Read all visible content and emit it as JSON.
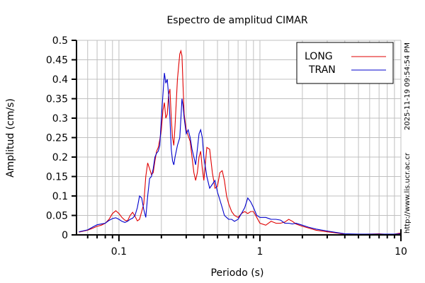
{
  "chart_data": {
    "type": "line",
    "title": "Espectro de amplitud CIMAR",
    "xlabel": "Periodo (s)",
    "ylabel": "Amplitud (cm/s)",
    "xscale": "log",
    "xlim": [
      0.05,
      10
    ],
    "ylim": [
      0,
      0.5
    ],
    "grid": true,
    "legend_position": "upper right",
    "x_tick_labels": [
      "0.1",
      "1",
      "10"
    ],
    "y_tick_labels": [
      "0",
      "0.05",
      "0.1",
      "0.15",
      "0.2",
      "0.25",
      "0.3",
      "0.35",
      "0.4",
      "0.45",
      "0.5"
    ],
    "series": [
      {
        "name": "LONG",
        "color": "#e00000",
        "x": [
          0.052,
          0.06,
          0.065,
          0.07,
          0.075,
          0.08,
          0.085,
          0.09,
          0.095,
          0.1,
          0.105,
          0.11,
          0.115,
          0.12,
          0.125,
          0.13,
          0.135,
          0.14,
          0.145,
          0.15,
          0.155,
          0.16,
          0.165,
          0.17,
          0.175,
          0.18,
          0.185,
          0.19,
          0.195,
          0.2,
          0.205,
          0.21,
          0.215,
          0.22,
          0.225,
          0.23,
          0.235,
          0.24,
          0.245,
          0.25,
          0.26,
          0.27,
          0.275,
          0.28,
          0.285,
          0.29,
          0.3,
          0.31,
          0.32,
          0.33,
          0.34,
          0.35,
          0.36,
          0.37,
          0.38,
          0.39,
          0.4,
          0.42,
          0.44,
          0.46,
          0.48,
          0.5,
          0.52,
          0.54,
          0.56,
          0.58,
          0.6,
          0.63,
          0.66,
          0.7,
          0.74,
          0.78,
          0.82,
          0.86,
          0.9,
          0.95,
          1.0,
          1.1,
          1.2,
          1.3,
          1.4,
          1.5,
          1.6,
          1.7,
          1.8,
          2.0,
          2.2,
          2.5,
          3.0,
          3.5,
          4.0,
          5.0,
          6.0,
          7.0,
          8.0,
          9.0,
          10.0
        ],
        "values": [
          0.007,
          0.012,
          0.017,
          0.022,
          0.025,
          0.03,
          0.04,
          0.055,
          0.062,
          0.055,
          0.045,
          0.038,
          0.036,
          0.05,
          0.058,
          0.048,
          0.036,
          0.04,
          0.06,
          0.08,
          0.15,
          0.185,
          0.17,
          0.155,
          0.16,
          0.19,
          0.215,
          0.225,
          0.245,
          0.27,
          0.32,
          0.34,
          0.3,
          0.31,
          0.36,
          0.375,
          0.3,
          0.25,
          0.23,
          0.28,
          0.4,
          0.465,
          0.473,
          0.46,
          0.38,
          0.31,
          0.27,
          0.255,
          0.24,
          0.2,
          0.16,
          0.14,
          0.16,
          0.2,
          0.215,
          0.17,
          0.14,
          0.225,
          0.22,
          0.16,
          0.12,
          0.125,
          0.16,
          0.165,
          0.14,
          0.1,
          0.08,
          0.06,
          0.05,
          0.045,
          0.055,
          0.06,
          0.055,
          0.06,
          0.06,
          0.045,
          0.03,
          0.025,
          0.035,
          0.03,
          0.03,
          0.033,
          0.04,
          0.035,
          0.028,
          0.022,
          0.018,
          0.012,
          0.008,
          0.005,
          0.002,
          0.001,
          0.002,
          0.003,
          0.001,
          0.002,
          0.005
        ]
      },
      {
        "name": "TRAN",
        "color": "#0000cc",
        "x": [
          0.052,
          0.06,
          0.065,
          0.07,
          0.075,
          0.08,
          0.085,
          0.09,
          0.095,
          0.1,
          0.105,
          0.11,
          0.115,
          0.12,
          0.125,
          0.13,
          0.135,
          0.14,
          0.145,
          0.15,
          0.155,
          0.16,
          0.165,
          0.17,
          0.175,
          0.18,
          0.185,
          0.19,
          0.195,
          0.2,
          0.205,
          0.21,
          0.215,
          0.22,
          0.225,
          0.23,
          0.235,
          0.24,
          0.245,
          0.25,
          0.26,
          0.27,
          0.275,
          0.28,
          0.285,
          0.29,
          0.3,
          0.31,
          0.32,
          0.33,
          0.34,
          0.35,
          0.36,
          0.37,
          0.38,
          0.39,
          0.4,
          0.42,
          0.44,
          0.46,
          0.48,
          0.5,
          0.52,
          0.54,
          0.56,
          0.58,
          0.6,
          0.63,
          0.66,
          0.7,
          0.74,
          0.78,
          0.82,
          0.86,
          0.9,
          0.95,
          1.0,
          1.1,
          1.2,
          1.3,
          1.4,
          1.5,
          1.6,
          1.7,
          1.8,
          2.0,
          2.2,
          2.5,
          3.0,
          3.5,
          4.0,
          5.0,
          6.0,
          7.0,
          8.0,
          9.0,
          10.0
        ],
        "values": [
          0.008,
          0.013,
          0.02,
          0.026,
          0.028,
          0.03,
          0.037,
          0.042,
          0.044,
          0.04,
          0.035,
          0.032,
          0.035,
          0.04,
          0.043,
          0.05,
          0.07,
          0.1,
          0.095,
          0.065,
          0.045,
          0.1,
          0.145,
          0.15,
          0.17,
          0.2,
          0.21,
          0.215,
          0.23,
          0.3,
          0.36,
          0.416,
          0.39,
          0.4,
          0.36,
          0.3,
          0.22,
          0.19,
          0.18,
          0.2,
          0.23,
          0.25,
          0.3,
          0.35,
          0.33,
          0.3,
          0.26,
          0.27,
          0.25,
          0.22,
          0.2,
          0.18,
          0.22,
          0.26,
          0.27,
          0.25,
          0.2,
          0.15,
          0.12,
          0.13,
          0.14,
          0.11,
          0.09,
          0.07,
          0.05,
          0.045,
          0.04,
          0.04,
          0.035,
          0.04,
          0.055,
          0.07,
          0.095,
          0.085,
          0.07,
          0.05,
          0.045,
          0.045,
          0.04,
          0.04,
          0.038,
          0.03,
          0.03,
          0.028,
          0.03,
          0.025,
          0.02,
          0.015,
          0.01,
          0.006,
          0.003,
          0.002,
          0.002,
          0.002,
          0.002,
          0.002,
          0.003
        ]
      }
    ]
  },
  "legend": {
    "items": [
      {
        "label": "LONG",
        "color": "#e00000"
      },
      {
        "label": "TRAN",
        "color": "#0000cc"
      }
    ]
  },
  "side_text": {
    "url": "http://www.lis.ucr.ac.cr",
    "timestamp": "2025-11-19 09:54:54 PM"
  }
}
